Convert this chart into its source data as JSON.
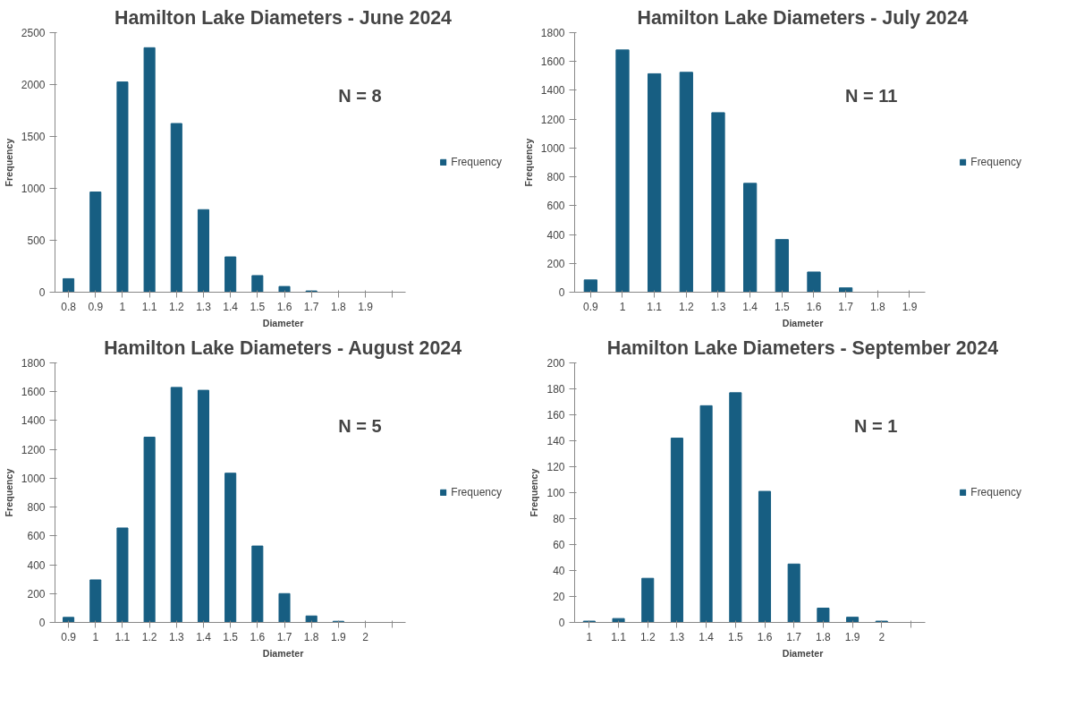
{
  "chart_data": [
    {
      "type": "bar",
      "title": "Hamilton Lake Diameters - June 2024",
      "xlabel": "Diameter",
      "ylabel": "Frequency",
      "annotations": [
        "N = 8"
      ],
      "categories": [
        "0.8",
        "0.9",
        "1",
        "1.1",
        "1.2",
        "1.3",
        "1.4",
        "1.5",
        "1.6",
        "1.7",
        "1.8",
        "1.9",
        null
      ],
      "series": [
        {
          "name": "Frequency",
          "color": "#175e82",
          "values": [
            130,
            965,
            2025,
            2355,
            1625,
            795,
            340,
            160,
            55,
            12,
            0,
            0,
            0
          ]
        }
      ],
      "ylim": [
        0,
        2500
      ],
      "yticks": [
        0,
        500,
        1000,
        1500,
        2000,
        2500
      ],
      "grid": false,
      "legend": "right"
    },
    {
      "type": "bar",
      "title": "Hamilton Lake Diameters - July 2024",
      "xlabel": "Diameter",
      "ylabel": "Frequency",
      "annotations": [
        "N = 11"
      ],
      "categories": [
        "0.9",
        "1",
        "1.1",
        "1.2",
        "1.3",
        "1.4",
        "1.5",
        "1.6",
        "1.7",
        "1.8",
        "1.9"
      ],
      "series": [
        {
          "name": "Frequency",
          "color": "#175e82",
          "values": [
            85,
            1680,
            1515,
            1525,
            1245,
            755,
            365,
            140,
            30,
            0,
            0
          ]
        }
      ],
      "ylim": [
        0,
        1800
      ],
      "yticks": [
        0,
        200,
        400,
        600,
        800,
        1000,
        1200,
        1400,
        1600,
        1800
      ],
      "grid": false,
      "legend": "right"
    },
    {
      "type": "bar",
      "title": "Hamilton Lake Diameters - August 2024",
      "xlabel": "Diameter",
      "ylabel": "Frequency",
      "annotations": [
        "N = 5"
      ],
      "categories": [
        "0.9",
        "1",
        "1.1",
        "1.2",
        "1.3",
        "1.4",
        "1.5",
        "1.6",
        "1.7",
        "1.8",
        "1.9",
        "2",
        null
      ],
      "series": [
        {
          "name": "Frequency",
          "color": "#175e82",
          "values": [
            35,
            295,
            655,
            1285,
            1630,
            1610,
            1035,
            530,
            200,
            45,
            8,
            0,
            0
          ]
        }
      ],
      "ylim": [
        0,
        1800
      ],
      "yticks": [
        0,
        200,
        400,
        600,
        800,
        1000,
        1200,
        1400,
        1600,
        1800
      ],
      "grid": false,
      "legend": "right"
    },
    {
      "type": "bar",
      "title": "Hamilton Lake Diameters - September 2024",
      "xlabel": "Diameter",
      "ylabel": "Frequency",
      "annotations": [
        "N = 1"
      ],
      "categories": [
        "1",
        "1.1",
        "1.2",
        "1.3",
        "1.4",
        "1.5",
        "1.6",
        "1.7",
        "1.8",
        "1.9",
        "2",
        null
      ],
      "series": [
        {
          "name": "Frequency",
          "color": "#175e82",
          "values": [
            1,
            3,
            34,
            142,
            167,
            177,
            101,
            45,
            11,
            4,
            1,
            0
          ]
        }
      ],
      "ylim": [
        0,
        200
      ],
      "yticks": [
        0,
        20,
        40,
        60,
        80,
        100,
        120,
        140,
        160,
        180,
        200
      ],
      "grid": false,
      "legend": "right"
    }
  ]
}
